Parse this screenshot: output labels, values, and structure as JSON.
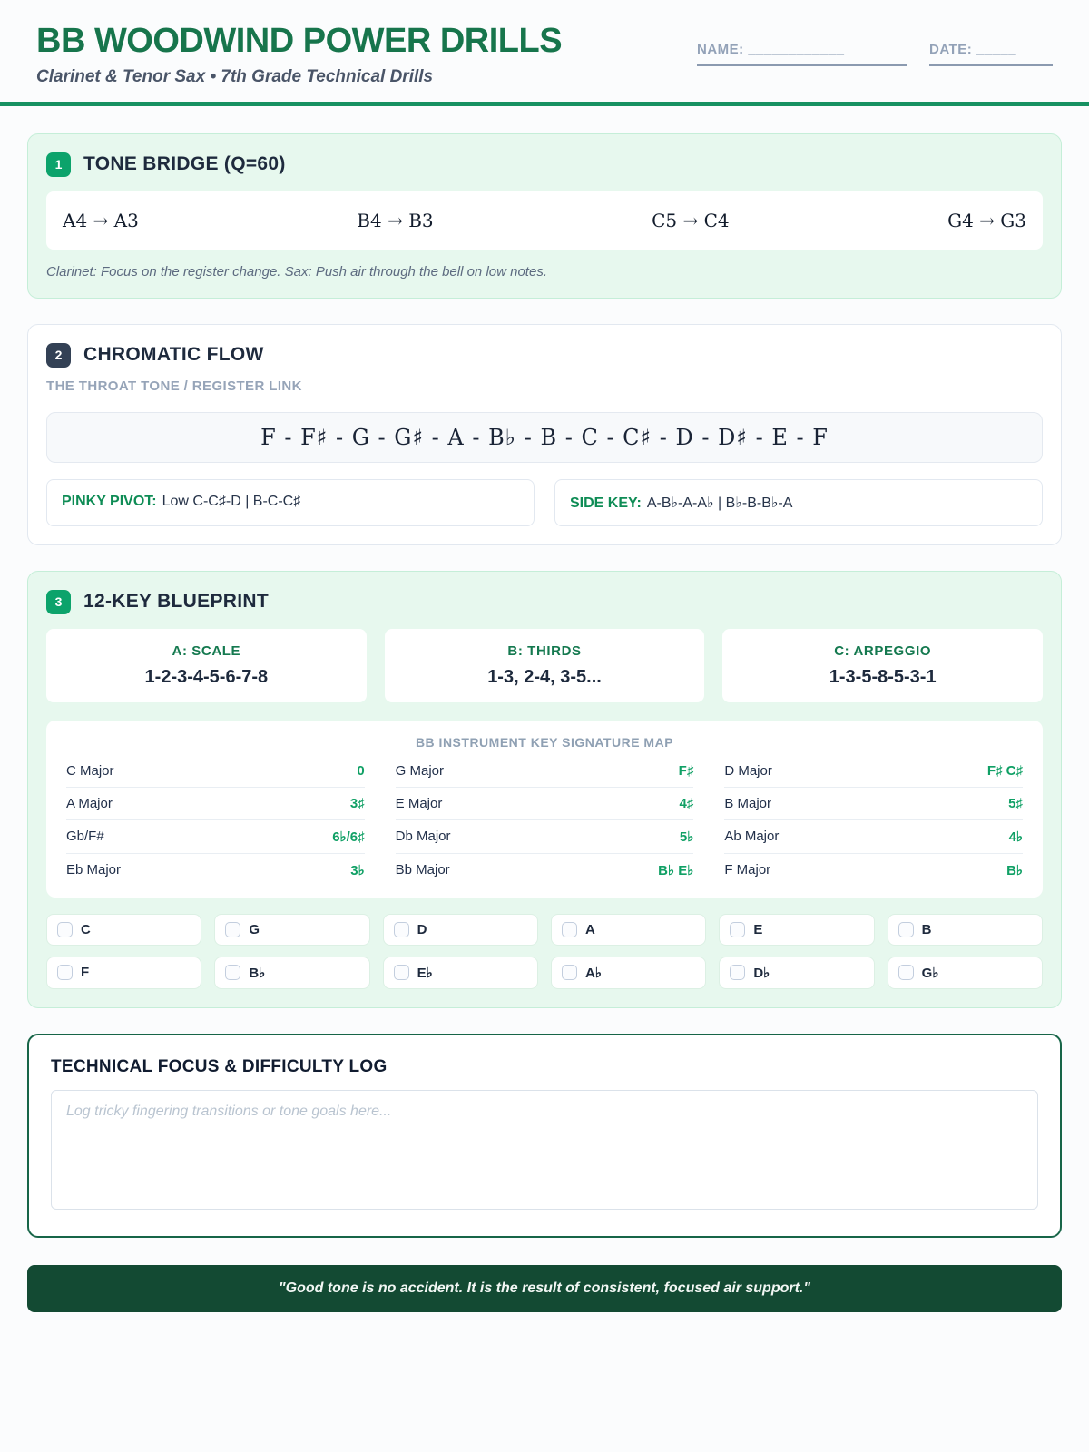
{
  "header": {
    "title": "BB WOODWIND POWER DRILLS",
    "subtitle": "Clarinet & Tenor Sax • 7th Grade Technical Drills",
    "name_label": "NAME: ____________",
    "date_label": "DATE: _____"
  },
  "colors": {
    "brand_green": "#17754c",
    "accent_green": "#0ca36b",
    "dark_green": "#134a33",
    "navy": "#1e2a3d",
    "mint_bg": "#e7f8ee",
    "slate": "#96a4b8"
  },
  "section1": {
    "number": "1",
    "title": "TONE BRIDGE (Q=60)",
    "drills": [
      "A4 → A3",
      "B4 → B3",
      "C5 → C4",
      "G4 → G3"
    ],
    "note": "Clarinet: Focus on the register change. Sax: Push air through the bell on low notes."
  },
  "section2": {
    "number": "2",
    "title": "CHROMATIC FLOW",
    "subtitle": "THE THROAT TONE / REGISTER LINK",
    "scale": "F - F♯ - G - G♯ - A - B♭ - B - C - C♯ - D - D♯ - E - F",
    "tips": [
      {
        "label": "PINKY PIVOT:",
        "value": "Low C-C♯-D | B-C-C♯"
      },
      {
        "label": "SIDE KEY:",
        "value": "A-B♭-A-A♭ | B♭-B-B♭-A"
      }
    ]
  },
  "section3": {
    "number": "3",
    "title": "12-KEY BLUEPRINT",
    "patterns": [
      {
        "label": "A: SCALE",
        "value": "1-2-3-4-5-6-7-8"
      },
      {
        "label": "B: THIRDS",
        "value": "1-3, 2-4, 3-5..."
      },
      {
        "label": "C: ARPEGGIO",
        "value": "1-3-5-8-5-3-1"
      }
    ],
    "key_map": {
      "title": "BB INSTRUMENT KEY SIGNATURE MAP",
      "entries": [
        {
          "key": "C Major",
          "sig": "0"
        },
        {
          "key": "G Major",
          "sig": "F♯"
        },
        {
          "key": "D Major",
          "sig": "F♯ C♯"
        },
        {
          "key": "A Major",
          "sig": "3♯"
        },
        {
          "key": "E Major",
          "sig": "4♯"
        },
        {
          "key": "B Major",
          "sig": "5♯"
        },
        {
          "key": "Gb/F#",
          "sig": "6♭/6♯"
        },
        {
          "key": "Db Major",
          "sig": "5♭"
        },
        {
          "key": "Ab Major",
          "sig": "4♭"
        },
        {
          "key": "Eb Major",
          "sig": "3♭"
        },
        {
          "key": "Bb Major",
          "sig": "B♭ E♭"
        },
        {
          "key": "F Major",
          "sig": "B♭"
        }
      ]
    },
    "checkboxes": [
      "C",
      "G",
      "D",
      "A",
      "E",
      "B",
      "F",
      "B♭",
      "E♭",
      "A♭",
      "D♭",
      "G♭"
    ]
  },
  "log": {
    "title": "TECHNICAL FOCUS & DIFFICULTY LOG",
    "placeholder": "Log tricky fingering transitions or tone goals here..."
  },
  "footer": {
    "quote": "\"Good tone is no accident. It is the result of consistent, focused air support.\""
  }
}
